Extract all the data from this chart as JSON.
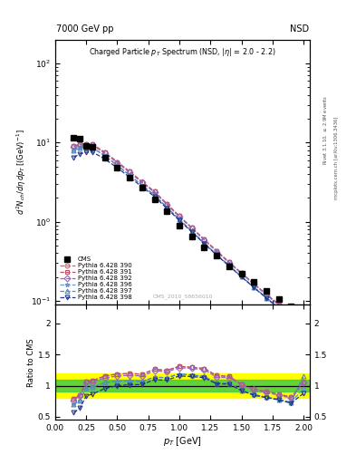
{
  "pt_values": [
    0.15,
    0.2,
    0.25,
    0.3,
    0.4,
    0.5,
    0.6,
    0.7,
    0.8,
    0.9,
    1.0,
    1.1,
    1.2,
    1.3,
    1.4,
    1.5,
    1.6,
    1.7,
    1.8,
    1.9,
    2.0
  ],
  "cms_values": [
    11.5,
    11.2,
    9.0,
    8.8,
    6.5,
    4.8,
    3.6,
    2.7,
    1.9,
    1.35,
    0.9,
    0.65,
    0.47,
    0.37,
    0.27,
    0.22,
    0.175,
    0.135,
    0.105,
    0.085,
    0.065
  ],
  "pythia_390": [
    9.0,
    9.5,
    9.6,
    9.5,
    7.5,
    5.7,
    4.3,
    3.2,
    2.4,
    1.68,
    1.18,
    0.84,
    0.6,
    0.43,
    0.31,
    0.225,
    0.165,
    0.122,
    0.091,
    0.069,
    0.068
  ],
  "pythia_391": [
    9.0,
    9.5,
    9.6,
    9.5,
    7.5,
    5.7,
    4.3,
    3.2,
    2.4,
    1.68,
    1.18,
    0.84,
    0.6,
    0.43,
    0.31,
    0.225,
    0.165,
    0.122,
    0.091,
    0.069,
    0.068
  ],
  "pythia_392": [
    8.8,
    9.3,
    9.4,
    9.3,
    7.3,
    5.55,
    4.2,
    3.12,
    2.35,
    1.65,
    1.16,
    0.83,
    0.59,
    0.42,
    0.305,
    0.222,
    0.163,
    0.12,
    0.089,
    0.068,
    0.068
  ],
  "pythia_396": [
    8.0,
    8.6,
    8.7,
    8.6,
    6.8,
    5.15,
    3.87,
    2.88,
    2.16,
    1.52,
    1.07,
    0.76,
    0.54,
    0.385,
    0.28,
    0.204,
    0.15,
    0.11,
    0.082,
    0.062,
    0.062
  ],
  "pythia_397": [
    8.0,
    8.6,
    8.7,
    8.6,
    6.8,
    5.15,
    3.87,
    2.88,
    2.16,
    1.52,
    1.07,
    0.76,
    0.54,
    0.385,
    0.28,
    0.204,
    0.15,
    0.11,
    0.082,
    0.062,
    0.075
  ],
  "pythia_398": [
    6.5,
    7.2,
    7.5,
    7.6,
    6.2,
    4.8,
    3.65,
    2.75,
    2.08,
    1.47,
    1.04,
    0.745,
    0.53,
    0.38,
    0.277,
    0.202,
    0.148,
    0.109,
    0.081,
    0.061,
    0.057
  ],
  "color_390": "#cc6677",
  "color_391": "#bb5566",
  "color_392": "#9966bb",
  "color_396": "#6699cc",
  "color_397": "#5588bb",
  "color_398": "#223388",
  "marker_390": "o",
  "marker_391": "s",
  "marker_392": "D",
  "marker_396": "*",
  "marker_397": "^",
  "marker_398": "v",
  "ylim_main": [
    0.09,
    200
  ],
  "ylim_ratio": [
    0.45,
    2.3
  ],
  "yticks_ratio": [
    0.5,
    1.0,
    1.5,
    2.0
  ],
  "ytick_labels_ratio": [
    "0.5",
    "1",
    "1.5",
    "2"
  ],
  "xlim": [
    0.0,
    2.05
  ],
  "band_yellow": [
    0.8,
    1.2
  ],
  "band_green": [
    0.9,
    1.1
  ],
  "band_yellow_color": "#ffff00",
  "band_green_color": "#44cc44",
  "title_left": "7000 GeV pp",
  "title_right": "NSD",
  "plot_title": "Charged Particle $p_T$ Spectrum (NSD, $|\\eta|$ = 2.0 - 2.2)",
  "watermark": "CMS_2010_S8656010",
  "ylabel_main": "$d^2N_{ch}/d\\eta\\,dp_T\\,[(\\mathrm{GeV})^{-1}]$",
  "ylabel_ratio": "Ratio to CMS",
  "xlabel": "$p_T$ [GeV]",
  "right_label1": "Rivet 3.1.10, $\\geq$ 2.9M events",
  "right_label2": "mcplots.cern.ch [arXiv:1306.3436]"
}
